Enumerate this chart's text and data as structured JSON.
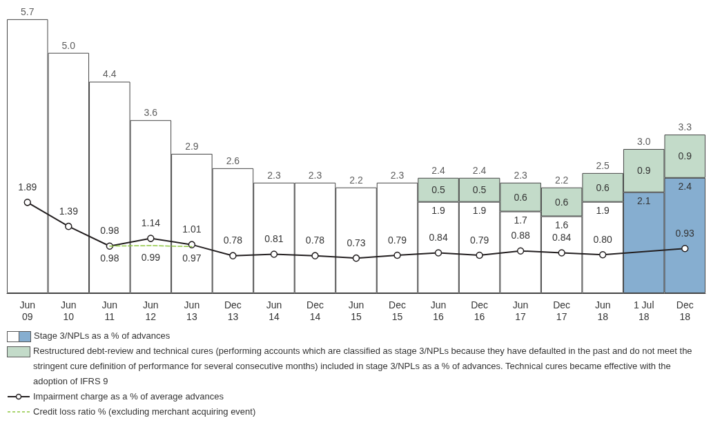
{
  "chart_data": {
    "type": "bar",
    "stacked": true,
    "categories": [
      "Jun 09",
      "Jun 10",
      "Jun 11",
      "Jun 12",
      "Jun 13",
      "Dec 13",
      "Jun 14",
      "Dec 14",
      "Jun 15",
      "Dec 15",
      "Jun 16",
      "Dec 16",
      "Jun 17",
      "Dec 17",
      "Jun 18",
      "1 Jul 18",
      "Dec 18"
    ],
    "series": [
      {
        "name": "Stage 3/NPLs as a % of advances",
        "colors": [
          "#ffffff",
          "#ffffff",
          "#ffffff",
          "#ffffff",
          "#ffffff",
          "#ffffff",
          "#ffffff",
          "#ffffff",
          "#ffffff",
          "#ffffff",
          "#ffffff",
          "#ffffff",
          "#ffffff",
          "#ffffff",
          "#ffffff",
          "#86aed0",
          "#86aed0"
        ],
        "values": [
          5.7,
          5.0,
          4.4,
          3.6,
          2.9,
          2.6,
          2.3,
          2.3,
          2.2,
          2.3,
          1.9,
          1.9,
          1.7,
          1.6,
          1.9,
          2.1,
          2.4
        ],
        "value_labels": [
          null,
          null,
          null,
          null,
          null,
          null,
          null,
          null,
          null,
          null,
          "1.9",
          "1.9",
          "1.7",
          "1.6",
          "1.9",
          "2.1",
          "2.4"
        ]
      },
      {
        "name": "Restructured debt-review and technical cures (performing accounts which are classified as stage 3/NPLs because they have defaulted in the past and do not meet the stringent cure definition of performance for several consecutive months) included in stage 3/NPLs as a % of advances. Technical cures became effective with the adoption of IFRS 9",
        "color": "#c3dbc9",
        "values": [
          null,
          null,
          null,
          null,
          null,
          null,
          null,
          null,
          null,
          null,
          0.5,
          0.5,
          0.6,
          0.6,
          0.6,
          0.9,
          0.9
        ],
        "value_labels": [
          null,
          null,
          null,
          null,
          null,
          null,
          null,
          null,
          null,
          null,
          "0.5",
          "0.5",
          "0.6",
          "0.6",
          "0.6",
          "0.9",
          "0.9"
        ]
      },
      {
        "name": "Impairment charge as a % of average advances",
        "type": "line",
        "color": "#231f20",
        "marker": "circle",
        "line_style": "solid",
        "values": [
          1.89,
          1.39,
          0.98,
          1.14,
          1.01,
          0.78,
          0.81,
          0.78,
          0.73,
          0.79,
          0.84,
          0.79,
          0.88,
          0.84,
          0.8,
          null,
          0.93
        ],
        "value_labels": [
          "1.89",
          "1.39",
          "0.98",
          "1.14",
          "1.01",
          "0.78",
          "0.81",
          "0.78",
          "0.73",
          "0.79",
          "0.84",
          "0.79",
          "0.88",
          "0.84",
          "0.80",
          null,
          "0.93"
        ]
      },
      {
        "name": "Credit loss ratio % (excluding merchant acquiring event)",
        "type": "line",
        "color": "#8dc63f",
        "marker": "none",
        "line_style": "dashed",
        "values": [
          null,
          null,
          0.98,
          0.99,
          0.97,
          null,
          null,
          null,
          null,
          null,
          null,
          null,
          null,
          null,
          null,
          null,
          null
        ],
        "value_labels": [
          null,
          null,
          "0.98",
          "0.99",
          "0.97",
          null,
          null,
          null,
          null,
          null,
          null,
          null,
          null,
          null,
          null,
          null,
          null
        ]
      }
    ],
    "totals": [
      "5.7",
      "5.0",
      "4.4",
      "3.6",
      "2.9",
      "2.6",
      "2.3",
      "2.3",
      "2.2",
      "2.3",
      "2.4",
      "2.4",
      "2.3",
      "2.2",
      "2.5",
      "3.0",
      "3.3"
    ],
    "grid": false,
    "legend": "bottom"
  }
}
